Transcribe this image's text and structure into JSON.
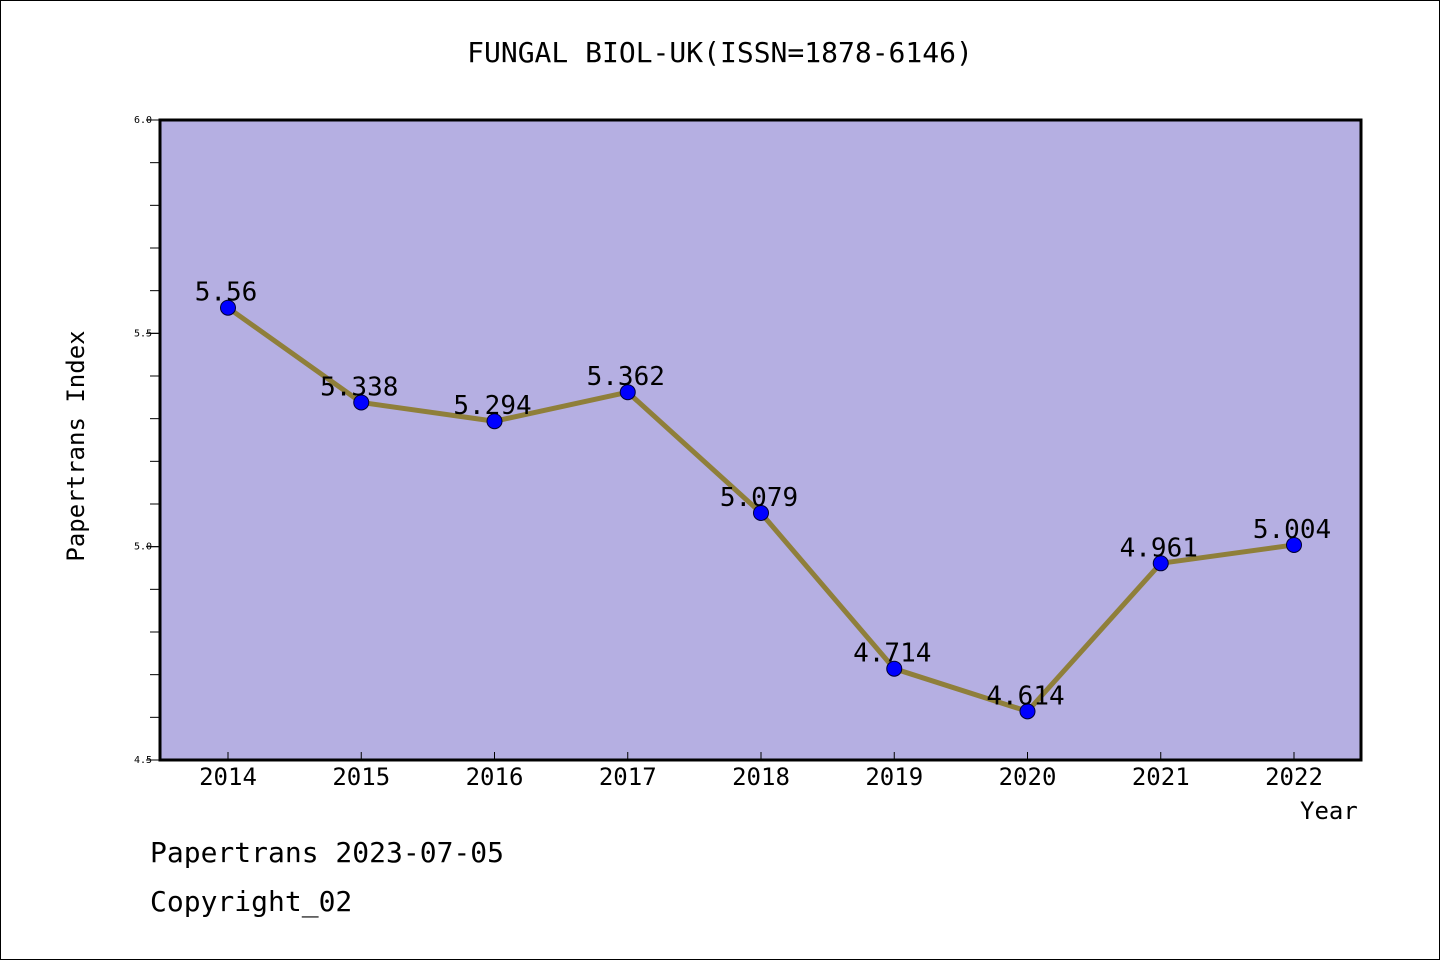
{
  "chart_data": {
    "type": "line",
    "title": "FUNGAL BIOL-UK(ISSN=1878-6146)",
    "xlabel": "Year",
    "ylabel": "Papertrans Index",
    "x": [
      "2014",
      "2015",
      "2016",
      "2017",
      "2018",
      "2019",
      "2020",
      "2021",
      "2022"
    ],
    "values": [
      5.56,
      5.338,
      5.294,
      5.362,
      5.079,
      4.714,
      4.614,
      4.961,
      5.004
    ],
    "value_labels": [
      "5.56",
      "5.338",
      "5.294",
      "5.362",
      "5.079",
      "4.714",
      "4.614",
      "4.961",
      "5.004"
    ],
    "ylim": [
      4.5,
      6.0
    ],
    "yticks": [
      "4.5",
      "5.0",
      "5.5",
      "6.0"
    ],
    "grid": false,
    "colors": {
      "plot_background": "#b5afe2",
      "line": "#8f7f3a",
      "marker": "#0000ff",
      "axis": "#000000"
    }
  },
  "footer": {
    "line1": "Papertrans 2023-07-05",
    "line2": "Copyright_02"
  }
}
